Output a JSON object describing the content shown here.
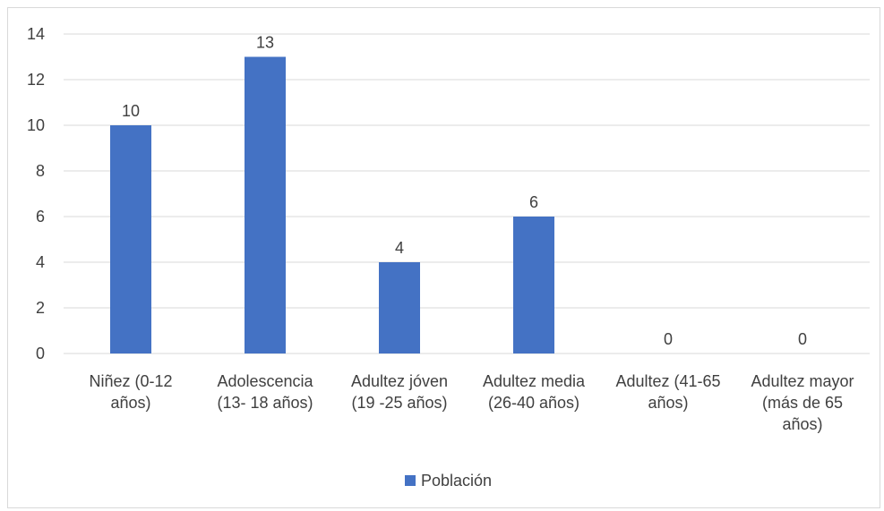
{
  "chart_data": {
    "type": "bar",
    "categories": [
      [
        "Niñez (0-12",
        "años)"
      ],
      [
        "Adolescencia",
        "(13- 18 años)"
      ],
      [
        "Adultez jóven",
        "(19 -25 años)"
      ],
      [
        "Adultez media",
        "(26-40 años)"
      ],
      [
        "Adultez (41-65",
        "años)"
      ],
      [
        "Adultez mayor",
        "(más de 65",
        "años)"
      ]
    ],
    "series": [
      {
        "name": "Población",
        "values": [
          10,
          13,
          4,
          6,
          0,
          0
        ],
        "color": "#4472c4"
      }
    ],
    "ylim": [
      0,
      14
    ],
    "yticks": [
      0,
      2,
      4,
      6,
      8,
      10,
      12,
      14
    ],
    "grid": true,
    "legend_position": "bottom",
    "gridline_color": "#d9d9d9",
    "text_color": "#404040"
  }
}
